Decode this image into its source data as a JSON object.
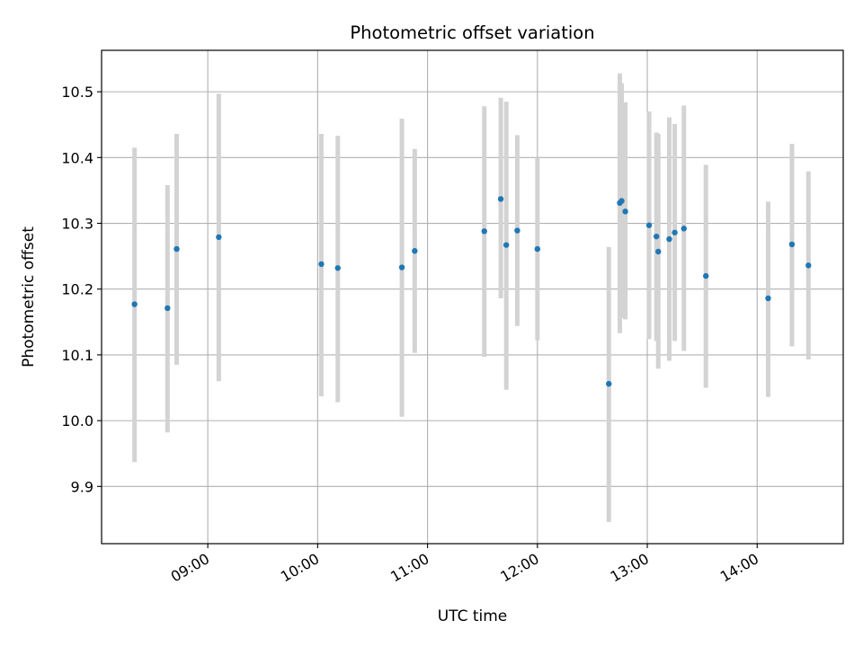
{
  "chart_data": {
    "type": "scatter",
    "title": "Photometric offset variation",
    "xlabel": "UTC time",
    "ylabel": "Photometric offset",
    "xlim": [
      "08:02",
      "14:47"
    ],
    "ylim": [
      9.813,
      10.563
    ],
    "grid": true,
    "x_ticks": [
      "09:00",
      "10:00",
      "11:00",
      "12:00",
      "13:00",
      "14:00"
    ],
    "y_ticks": [
      9.9,
      10.0,
      10.1,
      10.2,
      10.3,
      10.4,
      10.5
    ],
    "y_tick_labels": [
      "9.9",
      "10.0",
      "10.1",
      "10.2",
      "10.3",
      "10.4",
      "10.5"
    ],
    "colors": {
      "point": "#1f77b4",
      "errorbar": "#d3d3d3",
      "grid": "#b0b0b0"
    },
    "series": [
      {
        "points": [
          {
            "t": "08:20",
            "y": 10.177,
            "lo": 9.937,
            "hi": 10.415
          },
          {
            "t": "08:38",
            "y": 10.171,
            "lo": 9.982,
            "hi": 10.358
          },
          {
            "t": "08:43",
            "y": 10.261,
            "lo": 10.085,
            "hi": 10.436
          },
          {
            "t": "09:06",
            "y": 10.279,
            "lo": 10.06,
            "hi": 10.497
          },
          {
            "t": "10:02",
            "y": 10.238,
            "lo": 10.037,
            "hi": 10.436
          },
          {
            "t": "10:11",
            "y": 10.232,
            "lo": 10.028,
            "hi": 10.433
          },
          {
            "t": "10:46",
            "y": 10.233,
            "lo": 10.006,
            "hi": 10.459
          },
          {
            "t": "10:53",
            "y": 10.258,
            "lo": 10.103,
            "hi": 10.413
          },
          {
            "t": "11:31",
            "y": 10.288,
            "lo": 10.097,
            "hi": 10.478
          },
          {
            "t": "11:40",
            "y": 10.337,
            "lo": 10.186,
            "hi": 10.491
          },
          {
            "t": "11:43",
            "y": 10.267,
            "lo": 10.047,
            "hi": 10.485
          },
          {
            "t": "11:49",
            "y": 10.289,
            "lo": 10.144,
            "hi": 10.434
          },
          {
            "t": "12:00",
            "y": 10.261,
            "lo": 10.122,
            "hi": 10.4
          },
          {
            "t": "12:39",
            "y": 10.056,
            "lo": 9.846,
            "hi": 10.264
          },
          {
            "t": "12:45",
            "y": 10.331,
            "lo": 10.133,
            "hi": 10.528
          },
          {
            "t": "12:46",
            "y": 10.334,
            "lo": 10.156,
            "hi": 10.513
          },
          {
            "t": "12:48",
            "y": 10.318,
            "lo": 10.154,
            "hi": 10.484
          },
          {
            "t": "13:01",
            "y": 10.297,
            "lo": 10.124,
            "hi": 10.47
          },
          {
            "t": "13:05",
            "y": 10.28,
            "lo": 10.121,
            "hi": 10.438
          },
          {
            "t": "13:06",
            "y": 10.257,
            "lo": 10.079,
            "hi": 10.436
          },
          {
            "t": "13:12",
            "y": 10.276,
            "lo": 10.091,
            "hi": 10.461
          },
          {
            "t": "13:15",
            "y": 10.286,
            "lo": 10.121,
            "hi": 10.451
          },
          {
            "t": "13:20",
            "y": 10.292,
            "lo": 10.106,
            "hi": 10.479
          },
          {
            "t": "13:32",
            "y": 10.22,
            "lo": 10.05,
            "hi": 10.389
          },
          {
            "t": "14:06",
            "y": 10.186,
            "lo": 10.036,
            "hi": 10.333
          },
          {
            "t": "14:19",
            "y": 10.268,
            "lo": 10.113,
            "hi": 10.421
          },
          {
            "t": "14:28",
            "y": 10.236,
            "lo": 10.093,
            "hi": 10.379
          }
        ]
      }
    ]
  }
}
